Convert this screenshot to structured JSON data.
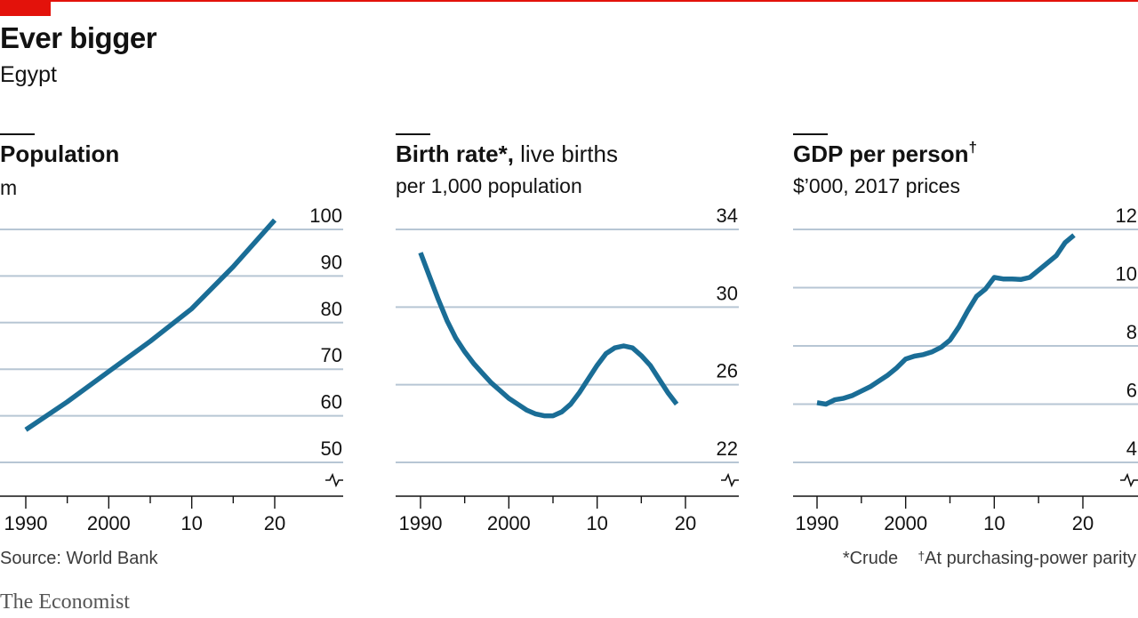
{
  "header": {
    "title": "Ever bigger",
    "subtitle": "Egypt"
  },
  "colors": {
    "line": "#1a6d96",
    "grid": "#b7c6d4",
    "accent": "#e3120b"
  },
  "chart_data": [
    {
      "type": "line",
      "title": "Population",
      "unit": "m",
      "x_ticks": [
        "1990",
        "2000",
        "10",
        "20"
      ],
      "x_tick_values": [
        1990,
        2000,
        2010,
        2020
      ],
      "y_ticks": [
        50,
        60,
        70,
        80,
        90,
        100
      ],
      "ylim": [
        50,
        100
      ],
      "y_broken_axis": true,
      "series": [
        {
          "x": [
            1990,
            1995,
            2000,
            2005,
            2010,
            2015,
            2020
          ],
          "y": [
            57,
            63,
            69.5,
            76,
            83,
            92,
            102
          ]
        }
      ]
    },
    {
      "type": "line",
      "title": "Birth rate",
      "title_marker": "*,",
      "title_rest": "live births",
      "unit": "per 1,000 population",
      "x_ticks": [
        "1990",
        "2000",
        "10",
        "20"
      ],
      "x_tick_values": [
        1990,
        2000,
        2010,
        2020
      ],
      "y_ticks": [
        22,
        26,
        30,
        34
      ],
      "ylim": [
        22,
        34
      ],
      "y_broken_axis": true,
      "series": [
        {
          "x": [
            1990,
            1991,
            1992,
            1993,
            1994,
            1995,
            1996,
            1997,
            1998,
            1999,
            2000,
            2001,
            2002,
            2003,
            2004,
            2005,
            2006,
            2007,
            2008,
            2009,
            2010,
            2011,
            2012,
            2013,
            2014,
            2015,
            2016,
            2017,
            2018,
            2019
          ],
          "y": [
            32.8,
            31.6,
            30.4,
            29.3,
            28.4,
            27.7,
            27.1,
            26.6,
            26.1,
            25.7,
            25.3,
            25.0,
            24.7,
            24.5,
            24.4,
            24.4,
            24.6,
            25.0,
            25.6,
            26.3,
            27.0,
            27.6,
            27.9,
            28.0,
            27.9,
            27.5,
            27.0,
            26.3,
            25.6,
            25.0
          ]
        }
      ]
    },
    {
      "type": "line",
      "title": "GDP per person",
      "title_marker": "†",
      "unit": "$’000, 2017 prices",
      "x_ticks": [
        "1990",
        "2000",
        "10",
        "20"
      ],
      "x_tick_values": [
        1990,
        2000,
        2010,
        2020
      ],
      "y_ticks": [
        4,
        6,
        8,
        10,
        12
      ],
      "ylim": [
        4,
        12
      ],
      "y_broken_axis": true,
      "series": [
        {
          "x": [
            1990,
            1991,
            1992,
            1993,
            1994,
            1995,
            1996,
            1997,
            1998,
            1999,
            2000,
            2001,
            2002,
            2003,
            2004,
            2005,
            2006,
            2007,
            2008,
            2009,
            2010,
            2011,
            2012,
            2013,
            2014,
            2015,
            2016,
            2017,
            2018,
            2019
          ],
          "y": [
            6.05,
            6.0,
            6.15,
            6.2,
            6.3,
            6.45,
            6.6,
            6.8,
            7.0,
            7.25,
            7.55,
            7.65,
            7.7,
            7.8,
            7.95,
            8.2,
            8.65,
            9.2,
            9.7,
            9.95,
            10.35,
            10.3,
            10.3,
            10.28,
            10.35,
            10.6,
            10.85,
            11.1,
            11.55,
            11.8
          ]
        }
      ]
    }
  ],
  "footer": {
    "source": "Source: World Bank",
    "note_crude": "*Crude",
    "note_dagger_mark": "†",
    "note_ppp": "At purchasing-power parity",
    "brand": "The Economist"
  }
}
